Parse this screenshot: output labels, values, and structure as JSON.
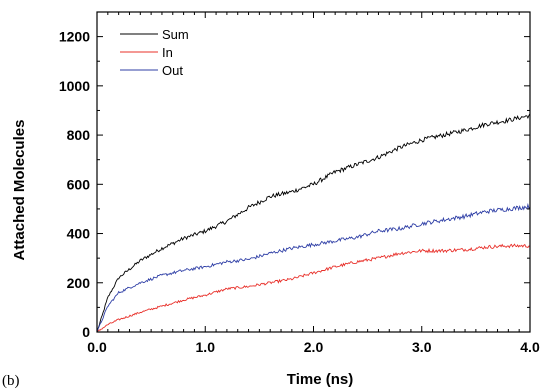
{
  "panel_label": "(b)",
  "chart_data": {
    "type": "line",
    "title": "",
    "xlabel": "Time (ns)",
    "ylabel": "Attached Molecules",
    "xlim": [
      0.0,
      4.0
    ],
    "ylim": [
      0,
      1300
    ],
    "x_ticks": [
      0.0,
      1.0,
      2.0,
      3.0,
      4.0
    ],
    "x_tick_labels": [
      "0.0",
      "1.0",
      "2.0",
      "3.0",
      "4.0"
    ],
    "y_ticks": [
      0,
      200,
      400,
      600,
      800,
      1000,
      1200
    ],
    "y_tick_labels": [
      "0",
      "200",
      "400",
      "600",
      "800",
      "1000",
      "1200"
    ],
    "grid": false,
    "legend_position": "top-left",
    "x": [
      0.0,
      0.1,
      0.2,
      0.4,
      0.6,
      0.8,
      1.0,
      1.2,
      1.4,
      1.6,
      1.8,
      2.0,
      2.2,
      2.4,
      2.6,
      2.8,
      3.0,
      3.2,
      3.4,
      3.6,
      3.8,
      4.0
    ],
    "series": [
      {
        "name": "Sum",
        "color": "#000000",
        "values": [
          0,
          140,
          220,
          290,
          340,
          380,
          410,
          450,
          505,
          550,
          570,
          600,
          650,
          680,
          710,
          750,
          780,
          800,
          820,
          845,
          860,
          880
        ]
      },
      {
        "name": "In",
        "color": "#e8302a",
        "values": [
          0,
          30,
          50,
          80,
          105,
          130,
          150,
          175,
          185,
          200,
          215,
          240,
          265,
          285,
          300,
          320,
          330,
          330,
          335,
          345,
          350,
          350
        ]
      },
      {
        "name": "Out",
        "color": "#2f3fa6",
        "values": [
          0,
          105,
          160,
          200,
          230,
          250,
          265,
          285,
          295,
          320,
          340,
          355,
          370,
          385,
          410,
          420,
          440,
          455,
          470,
          490,
          500,
          510
        ]
      }
    ]
  }
}
